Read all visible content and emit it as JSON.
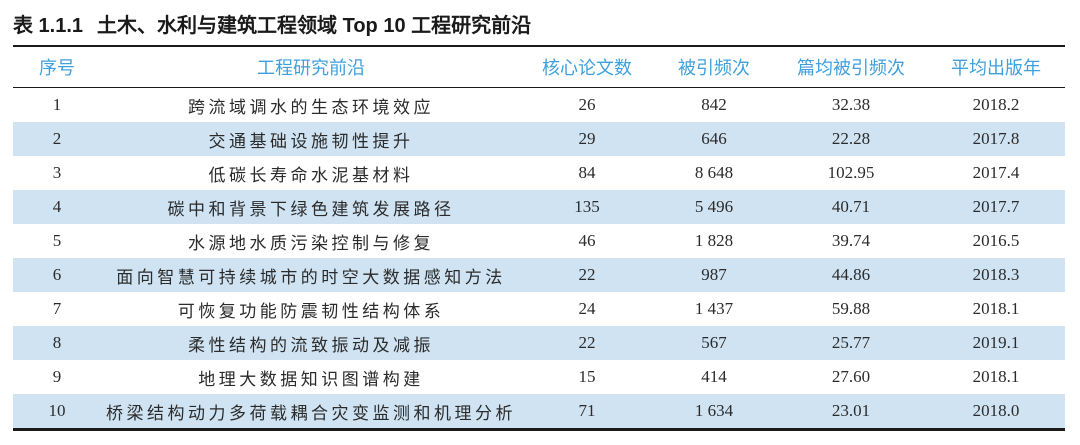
{
  "title": {
    "label": "表 1.1.1",
    "caption": "土木、水利与建筑工程领域 Top 10 工程研究前沿"
  },
  "table": {
    "columns": [
      {
        "label": "序号"
      },
      {
        "label": "工程研究前沿"
      },
      {
        "label": "核心论文数"
      },
      {
        "label": "被引频次"
      },
      {
        "label": "篇均被引频次"
      },
      {
        "label": "平均出版年"
      }
    ],
    "rows": [
      {
        "rank": "1",
        "front": "跨流域调水的生态环境效应",
        "core_papers": "26",
        "citations": "842",
        "citations_per_paper": "32.38",
        "mean_year": "2018.2"
      },
      {
        "rank": "2",
        "front": "交通基础设施韧性提升",
        "core_papers": "29",
        "citations": "646",
        "citations_per_paper": "22.28",
        "mean_year": "2017.8"
      },
      {
        "rank": "3",
        "front": "低碳长寿命水泥基材料",
        "core_papers": "84",
        "citations": "8 648",
        "citations_per_paper": "102.95",
        "mean_year": "2017.4"
      },
      {
        "rank": "4",
        "front": "碳中和背景下绿色建筑发展路径",
        "core_papers": "135",
        "citations": "5 496",
        "citations_per_paper": "40.71",
        "mean_year": "2017.7"
      },
      {
        "rank": "5",
        "front": "水源地水质污染控制与修复",
        "core_papers": "46",
        "citations": "1 828",
        "citations_per_paper": "39.74",
        "mean_year": "2016.5"
      },
      {
        "rank": "6",
        "front": "面向智慧可持续城市的时空大数据感知方法",
        "core_papers": "22",
        "citations": "987",
        "citations_per_paper": "44.86",
        "mean_year": "2018.3"
      },
      {
        "rank": "7",
        "front": "可恢复功能防震韧性结构体系",
        "core_papers": "24",
        "citations": "1 437",
        "citations_per_paper": "59.88",
        "mean_year": "2018.1"
      },
      {
        "rank": "8",
        "front": "柔性结构的流致振动及减振",
        "core_papers": "22",
        "citations": "567",
        "citations_per_paper": "25.77",
        "mean_year": "2019.1"
      },
      {
        "rank": "9",
        "front": "地理大数据知识图谱构建",
        "core_papers": "15",
        "citations": "414",
        "citations_per_paper": "27.60",
        "mean_year": "2018.1"
      },
      {
        "rank": "10",
        "front": "桥梁结构动力多荷载耦合灾变监测和机理分析",
        "core_papers": "71",
        "citations": "1 634",
        "citations_per_paper": "23.01",
        "mean_year": "2018.0"
      }
    ]
  },
  "colors": {
    "header_text": "#3FA0DB",
    "row_stripe": "#CFE3F2",
    "rule": "#1A1A1A",
    "body_text": "#2B2B2B"
  }
}
